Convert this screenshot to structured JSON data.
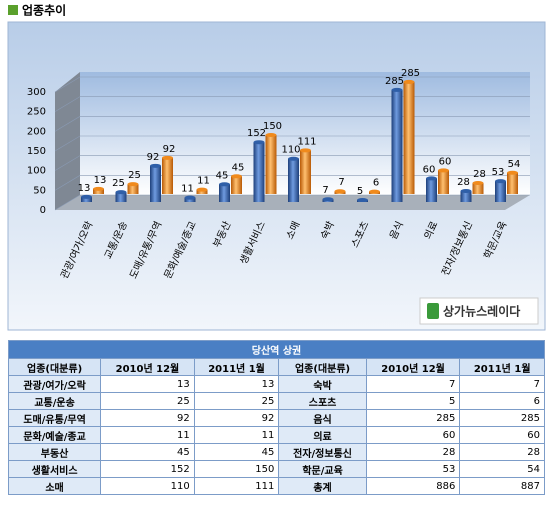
{
  "header": {
    "title": "업종추이"
  },
  "chart_data": {
    "type": "bar",
    "categories": [
      "관광/여가/오락",
      "교통/운송",
      "도매/유통/무역",
      "문화/예술/종교",
      "부동산",
      "생활서비스",
      "소매",
      "숙박",
      "스포츠",
      "음식",
      "의료",
      "전자/정보통신",
      "학문/교육"
    ],
    "series": [
      {
        "color": "#2f5fa8",
        "values": [
          13,
          25,
          92,
          11,
          45,
          152,
          110,
          7,
          5,
          285,
          60,
          28,
          53
        ]
      },
      {
        "color": "#f08a1c",
        "values": [
          13,
          25,
          92,
          11,
          45,
          150,
          111,
          7,
          6,
          285,
          60,
          28,
          54
        ]
      }
    ],
    "ylim": [
      0,
      300
    ],
    "yticks": [
      0,
      50,
      100,
      150,
      200,
      250,
      300
    ],
    "grid": true,
    "logo": "상가뉴스레이다"
  },
  "table": {
    "title": "당산역 상권",
    "headers": [
      "업종(대분류)",
      "2010년 12월",
      "2011년 1월",
      "업종(대분류)",
      "2010년 12월",
      "2011년 1월"
    ],
    "rows": [
      [
        "관광/여가/오락",
        13,
        13,
        "숙박",
        7,
        7
      ],
      [
        "교통/운송",
        25,
        25,
        "스포츠",
        5,
        6
      ],
      [
        "도매/유통/무역",
        92,
        92,
        "음식",
        285,
        285
      ],
      [
        "문화/예술/종교",
        11,
        11,
        "의료",
        60,
        60
      ],
      [
        "부동산",
        45,
        45,
        "전자/정보통신",
        28,
        28
      ],
      [
        "생활서비스",
        152,
        150,
        "학문/교육",
        53,
        54
      ],
      [
        "소매",
        110,
        111,
        "총계",
        886,
        887
      ]
    ]
  }
}
